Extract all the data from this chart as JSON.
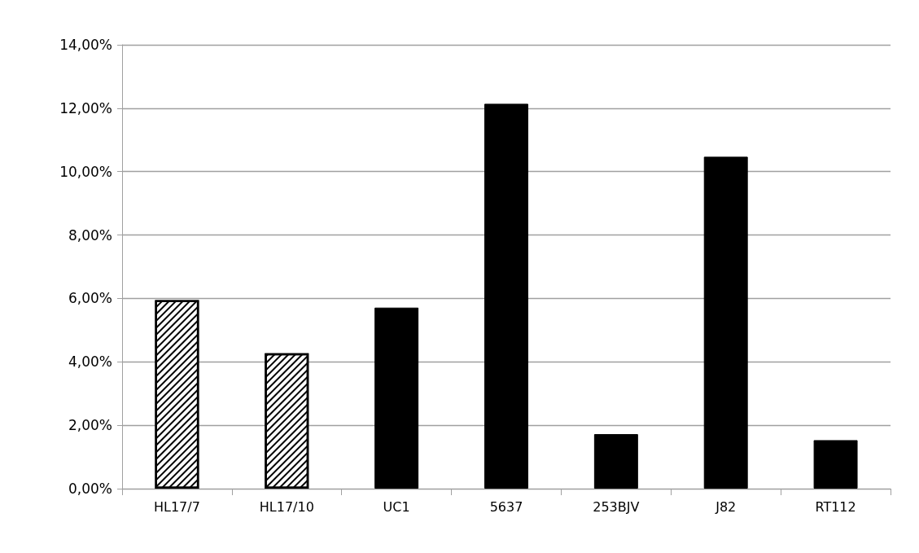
{
  "chart_data": {
    "type": "bar",
    "categories": [
      "HL17/7",
      "HL17/10",
      "UC1",
      "5637",
      "253BJV",
      "J82",
      "RT112"
    ],
    "values": [
      5.95,
      4.27,
      5.71,
      12.14,
      1.72,
      10.47,
      1.53
    ],
    "colors": [
      "#ffffff",
      "#ffffff",
      "#000000",
      "#000000",
      "#000000",
      "#000000",
      "#000000"
    ],
    "ylim": [
      0,
      14
    ],
    "yticks": [
      {
        "value": 0,
        "label": "0,00%"
      },
      {
        "value": 2,
        "label": "2,00%"
      },
      {
        "value": 4,
        "label": "4,00%"
      },
      {
        "value": 6,
        "label": "6,00%"
      },
      {
        "value": 8,
        "label": "8,00%"
      },
      {
        "value": 10,
        "label": "10,00%"
      },
      {
        "value": 12,
        "label": "12,00%"
      },
      {
        "value": 14,
        "label": "14,00%"
      }
    ],
    "grid": "y"
  }
}
